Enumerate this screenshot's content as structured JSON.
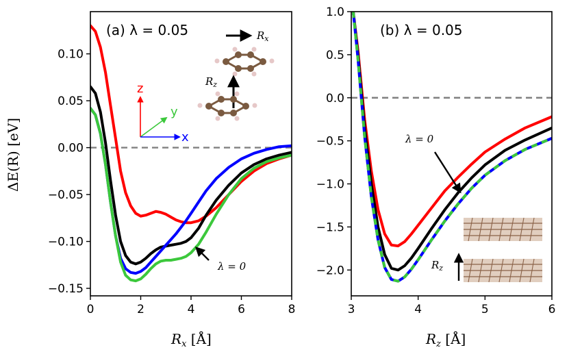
{
  "chart_data": [
    {
      "type": "line",
      "panel": "a",
      "title": "(a) λ = 0.05",
      "xlabel": "R_x [Å]",
      "ylabel": "ΔE(R) [eV]",
      "xlim": [
        0,
        8
      ],
      "ylim": [
        -0.158,
        0.145
      ],
      "xticks": [
        0,
        2,
        4,
        6,
        8
      ],
      "xtick_labels": [
        "0",
        "2",
        "4",
        "6",
        "8"
      ],
      "yticks": [
        -0.15,
        -0.1,
        -0.05,
        0.0,
        0.05,
        0.1
      ],
      "ytick_labels": [
        "−0.15",
        "−0.10",
        "−0.05",
        "0.00",
        "0.05",
        "0.10"
      ],
      "reference_line": 0,
      "series": [
        {
          "name": "red",
          "color": "#ff0000",
          "x": [
            0,
            0.2,
            0.4,
            0.6,
            0.8,
            1.0,
            1.2,
            1.4,
            1.6,
            1.8,
            2.0,
            2.2,
            2.4,
            2.6,
            2.8,
            3.0,
            3.2,
            3.4,
            3.6,
            3.8,
            4.0,
            4.3,
            4.6,
            5.0,
            5.5,
            6.0,
            6.5,
            7.0,
            7.5,
            8.0
          ],
          "y": [
            0.13,
            0.124,
            0.107,
            0.08,
            0.045,
            0.01,
            -0.025,
            -0.048,
            -0.062,
            -0.07,
            -0.073,
            -0.072,
            -0.07,
            -0.068,
            -0.069,
            -0.071,
            -0.074,
            -0.077,
            -0.079,
            -0.08,
            -0.08,
            -0.078,
            -0.073,
            -0.064,
            -0.05,
            -0.036,
            -0.025,
            -0.017,
            -0.012,
            -0.008
          ]
        },
        {
          "name": "black",
          "color": "#000000",
          "x": [
            0,
            0.2,
            0.4,
            0.6,
            0.8,
            1.0,
            1.2,
            1.4,
            1.6,
            1.8,
            2.0,
            2.2,
            2.4,
            2.6,
            2.8,
            3.0,
            3.2,
            3.4,
            3.6,
            3.8,
            4.0,
            4.3,
            4.6,
            5.0,
            5.5,
            6.0,
            6.5,
            7.0,
            7.5,
            8.0
          ],
          "y": [
            0.065,
            0.058,
            0.038,
            0.005,
            -0.035,
            -0.072,
            -0.1,
            -0.115,
            -0.122,
            -0.124,
            -0.122,
            -0.118,
            -0.113,
            -0.109,
            -0.106,
            -0.105,
            -0.104,
            -0.103,
            -0.102,
            -0.1,
            -0.096,
            -0.086,
            -0.072,
            -0.056,
            -0.04,
            -0.027,
            -0.018,
            -0.012,
            -0.008,
            -0.005
          ]
        },
        {
          "name": "blue",
          "color": "#0000ff",
          "x": [
            0,
            0.2,
            0.4,
            0.6,
            0.8,
            1.0,
            1.2,
            1.4,
            1.6,
            1.8,
            2.0,
            2.2,
            2.4,
            2.6,
            2.8,
            3.0,
            3.2,
            3.4,
            3.6,
            3.8,
            4.0,
            4.3,
            4.6,
            5.0,
            5.5,
            6.0,
            6.5,
            7.0,
            7.5,
            8.0
          ],
          "y": [
            0.042,
            0.035,
            0.015,
            -0.018,
            -0.058,
            -0.094,
            -0.118,
            -0.129,
            -0.133,
            -0.134,
            -0.132,
            -0.128,
            -0.122,
            -0.116,
            -0.11,
            -0.104,
            -0.098,
            -0.092,
            -0.085,
            -0.078,
            -0.07,
            -0.058,
            -0.046,
            -0.033,
            -0.021,
            -0.012,
            -0.006,
            -0.002,
            0.001,
            0.002
          ]
        },
        {
          "name": "green",
          "color": "#3cc83c",
          "x": [
            0,
            0.2,
            0.4,
            0.6,
            0.8,
            1.0,
            1.2,
            1.4,
            1.6,
            1.8,
            2.0,
            2.2,
            2.4,
            2.6,
            2.8,
            3.0,
            3.2,
            3.4,
            3.6,
            3.8,
            4.0,
            4.3,
            4.6,
            5.0,
            5.5,
            6.0,
            6.5,
            7.0,
            7.5,
            8.0
          ],
          "y": [
            0.042,
            0.035,
            0.015,
            -0.018,
            -0.058,
            -0.094,
            -0.122,
            -0.136,
            -0.141,
            -0.142,
            -0.14,
            -0.135,
            -0.129,
            -0.124,
            -0.121,
            -0.12,
            -0.12,
            -0.119,
            -0.118,
            -0.116,
            -0.112,
            -0.103,
            -0.09,
            -0.071,
            -0.05,
            -0.033,
            -0.022,
            -0.015,
            -0.011,
            -0.008
          ]
        }
      ],
      "annotations": [
        {
          "text": "λ = 0",
          "x": 5.0,
          "y": -0.123,
          "arrow_to_x": 4.2,
          "arrow_to_y": -0.104
        },
        {
          "text": "R_x",
          "kind": "inset-label"
        },
        {
          "text": "R_z",
          "kind": "inset-label"
        }
      ],
      "axes_legend": [
        {
          "text": "z",
          "color": "#ff0000"
        },
        {
          "text": "y",
          "color": "#3cc83c"
        },
        {
          "text": "x",
          "color": "#0000ff"
        }
      ]
    },
    {
      "type": "line",
      "panel": "b",
      "title": "(b) λ = 0.05",
      "xlabel": "R_z [Å]",
      "ylabel": "",
      "xlim": [
        3,
        6
      ],
      "ylim": [
        -2.3,
        1.0
      ],
      "xticks": [
        3,
        4,
        5,
        6
      ],
      "xtick_labels": [
        "3",
        "4",
        "5",
        "6"
      ],
      "yticks": [
        -2.0,
        -1.5,
        -1.0,
        -0.5,
        0.0,
        0.5,
        1.0
      ],
      "ytick_labels": [
        "−2.0",
        "−1.5",
        "−1.0",
        "−0.5",
        "0.0",
        "0.5",
        "1.0"
      ],
      "reference_line": 0,
      "series": [
        {
          "name": "red",
          "color": "#ff0000",
          "x": [
            3.03,
            3.1,
            3.2,
            3.3,
            3.4,
            3.5,
            3.6,
            3.7,
            3.8,
            3.9,
            4.0,
            4.2,
            4.4,
            4.6,
            4.8,
            5.0,
            5.3,
            5.6,
            6.0
          ],
          "y": [
            1.0,
            0.55,
            -0.25,
            -0.85,
            -1.3,
            -1.58,
            -1.71,
            -1.72,
            -1.67,
            -1.58,
            -1.48,
            -1.28,
            -1.08,
            -0.92,
            -0.77,
            -0.63,
            -0.48,
            -0.35,
            -0.22
          ]
        },
        {
          "name": "black",
          "color": "#000000",
          "x": [
            3.03,
            3.1,
            3.2,
            3.3,
            3.4,
            3.5,
            3.6,
            3.7,
            3.8,
            3.9,
            4.0,
            4.2,
            4.4,
            4.6,
            4.8,
            5.0,
            5.3,
            5.6,
            6.0
          ],
          "y": [
            1.0,
            0.5,
            -0.35,
            -1.0,
            -1.5,
            -1.82,
            -1.98,
            -2.0,
            -1.95,
            -1.86,
            -1.75,
            -1.52,
            -1.3,
            -1.1,
            -0.93,
            -0.78,
            -0.61,
            -0.49,
            -0.35
          ]
        },
        {
          "name": "blue",
          "color": "#0000ff",
          "dash": "none",
          "x": [
            3.03,
            3.1,
            3.2,
            3.3,
            3.4,
            3.5,
            3.6,
            3.7,
            3.8,
            3.9,
            4.0,
            4.2,
            4.4,
            4.6,
            4.8,
            5.0,
            5.3,
            5.6,
            6.0
          ],
          "y": [
            1.0,
            0.45,
            -0.45,
            -1.15,
            -1.65,
            -1.97,
            -2.11,
            -2.13,
            -2.08,
            -1.99,
            -1.88,
            -1.65,
            -1.43,
            -1.23,
            -1.05,
            -0.9,
            -0.73,
            -0.6,
            -0.47
          ]
        },
        {
          "name": "green",
          "color": "#3cc83c",
          "dash": "dashed",
          "x": [
            3.03,
            3.1,
            3.2,
            3.3,
            3.4,
            3.5,
            3.6,
            3.7,
            3.8,
            3.9,
            4.0,
            4.2,
            4.4,
            4.6,
            4.8,
            5.0,
            5.3,
            5.6,
            6.0
          ],
          "y": [
            1.0,
            0.45,
            -0.45,
            -1.15,
            -1.65,
            -1.97,
            -2.11,
            -2.13,
            -2.08,
            -1.99,
            -1.88,
            -1.65,
            -1.43,
            -1.23,
            -1.05,
            -0.9,
            -0.73,
            -0.6,
            -0.47
          ]
        }
      ],
      "annotations": [
        {
          "text": "λ = 0",
          "x": 4.1,
          "y": -0.42,
          "arrow_to_x": 4.65,
          "arrow_to_y": -1.05
        },
        {
          "text": "R_z",
          "kind": "inset-label"
        }
      ]
    }
  ],
  "labels": {
    "panel_a_title": "(a) λ = 0.05",
    "panel_b_title": "(b) λ = 0.05",
    "panel_a_xlabel": "R",
    "panel_a_xlabel_sub": "x",
    "panel_a_xlabel_unit": " [Å]",
    "panel_b_xlabel": "R",
    "panel_b_xlabel_sub": "z",
    "panel_b_xlabel_unit": " [Å]",
    "ylabel": "ΔE(R) [eV]",
    "annot_a": "λ = 0",
    "annot_b": "λ = 0",
    "inset_rx": "R",
    "inset_rx_sub": "x",
    "inset_rz": "R",
    "inset_rz_sub": "z",
    "inset_b_rz": "R",
    "inset_b_rz_sub": "z",
    "axis_z": "z",
    "axis_y": "y",
    "axis_x": "x"
  }
}
